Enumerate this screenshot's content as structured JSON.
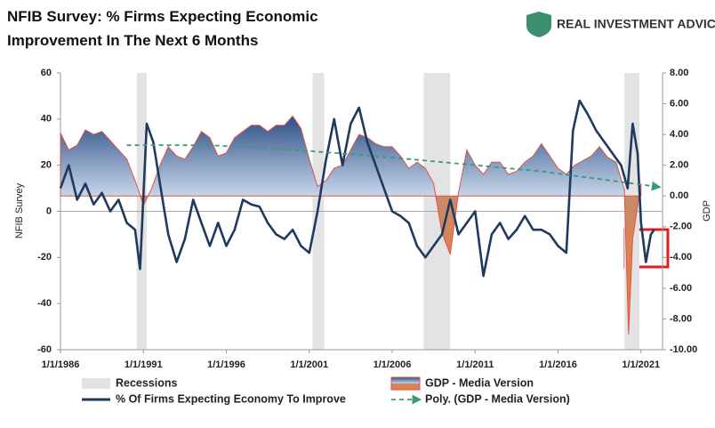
{
  "chart_data": {
    "type": "line",
    "title": [
      "NFIB Survey:  % Firms Expecting Economic",
      "Improvement In The  Next 6 Months"
    ],
    "brand": "REAL INVESTMENT ADVICE",
    "ylabel": "NFIB Survey",
    "y2label": "GDP",
    "xlim": [
      1986,
      2022.3
    ],
    "xticks": [
      {
        "value": 1986,
        "label": "1/1/1986"
      },
      {
        "value": 1991,
        "label": "1/1/1991"
      },
      {
        "value": 1996,
        "label": "1/1/1996"
      },
      {
        "value": 2001,
        "label": "1/1/2001"
      },
      {
        "value": 2006,
        "label": "1/1/2006"
      },
      {
        "value": 2011,
        "label": "1/1/2011"
      },
      {
        "value": 2016,
        "label": "1/1/2016"
      },
      {
        "value": 2021,
        "label": "1/1/2021"
      }
    ],
    "ylim": [
      -60,
      60
    ],
    "yticks": [
      -60,
      -40,
      -20,
      0,
      20,
      40,
      60
    ],
    "y2lim": [
      -10,
      8
    ],
    "y2ticks": [
      {
        "value": -10,
        "label": "-10.00"
      },
      {
        "value": -8,
        "label": "-8.00"
      },
      {
        "value": -6,
        "label": "-6.00"
      },
      {
        "value": -4,
        "label": "-4.00"
      },
      {
        "value": -2,
        "label": "-2.00"
      },
      {
        "value": 0,
        "label": "0.00"
      },
      {
        "value": 2,
        "label": "2.00"
      },
      {
        "value": 4,
        "label": "4.00"
      },
      {
        "value": 6,
        "label": "6.00"
      },
      {
        "value": 8,
        "label": "8.00"
      }
    ],
    "recessions": {
      "name": "Recessions",
      "color": "#e3e3e3",
      "spans": [
        [
          1990.6,
          1991.2
        ],
        [
          2001.2,
          2001.9
        ],
        [
          2007.9,
          2009.5
        ],
        [
          2020.0,
          2020.9
        ]
      ]
    },
    "series": [
      {
        "name": "GDP - Media Version",
        "style": "area",
        "axis": "y2",
        "color": "#2c4f86",
        "negative_color": "#f07b2f",
        "outline": "#e0534a",
        "x": [
          1986.0,
          1986.5,
          1987.0,
          1987.5,
          1988.0,
          1988.5,
          1989.0,
          1989.5,
          1990.0,
          1990.5,
          1991.0,
          1991.5,
          1992.0,
          1992.5,
          1993.0,
          1993.5,
          1994.0,
          1994.5,
          1995.0,
          1995.5,
          1996.0,
          1996.5,
          1997.0,
          1997.5,
          1998.0,
          1998.5,
          1999.0,
          1999.5,
          2000.0,
          2000.5,
          2001.0,
          2001.5,
          2002.0,
          2002.5,
          2003.0,
          2003.5,
          2004.0,
          2004.5,
          2005.0,
          2005.5,
          2006.0,
          2006.5,
          2007.0,
          2007.5,
          2008.0,
          2008.5,
          2009.0,
          2009.5,
          2010.0,
          2010.5,
          2011.0,
          2011.5,
          2012.0,
          2012.5,
          2013.0,
          2013.5,
          2014.0,
          2014.5,
          2015.0,
          2015.5,
          2016.0,
          2016.5,
          2017.0,
          2017.5,
          2018.0,
          2018.5,
          2019.0,
          2019.5,
          2020.0,
          2020.25,
          2020.5,
          2021.0
        ],
        "values": [
          4.1,
          3.0,
          3.3,
          4.3,
          4.0,
          4.2,
          3.6,
          3.0,
          2.4,
          1.0,
          -0.6,
          0.5,
          2.0,
          3.2,
          2.6,
          2.4,
          3.2,
          4.2,
          3.8,
          2.6,
          2.8,
          3.8,
          4.2,
          4.6,
          4.6,
          4.2,
          4.6,
          4.6,
          5.2,
          4.4,
          2.4,
          0.6,
          1.0,
          1.8,
          2.0,
          3.0,
          4.0,
          3.8,
          3.4,
          3.2,
          3.2,
          2.6,
          1.8,
          2.2,
          1.8,
          0.8,
          -2.4,
          -3.8,
          0.2,
          3.0,
          2.0,
          1.4,
          2.2,
          2.2,
          1.4,
          1.6,
          2.2,
          2.6,
          3.4,
          2.6,
          1.8,
          1.4,
          2.0,
          2.3,
          2.6,
          3.2,
          2.5,
          2.2,
          0.4,
          -9.0,
          -2.8,
          0.8
        ]
      },
      {
        "name": "% Of Firms Expecting Economy To Improve",
        "style": "line",
        "axis": "y",
        "color": "#1f3a5f",
        "x": [
          1986.0,
          1986.5,
          1987.0,
          1987.5,
          1988.0,
          1988.5,
          1989.0,
          1989.5,
          1990.0,
          1990.5,
          1990.8,
          1991.2,
          1991.6,
          1992.0,
          1992.5,
          1993.0,
          1993.5,
          1994.0,
          1994.5,
          1995.0,
          1995.5,
          1996.0,
          1996.5,
          1997.0,
          1997.5,
          1998.0,
          1998.5,
          1999.0,
          1999.5,
          2000.0,
          2000.5,
          2001.0,
          2001.5,
          2002.0,
          2002.5,
          2003.0,
          2003.5,
          2004.0,
          2004.5,
          2005.0,
          2005.5,
          2006.0,
          2006.5,
          2007.0,
          2007.5,
          2008.0,
          2008.5,
          2009.0,
          2009.5,
          2010.0,
          2010.5,
          2011.0,
          2011.5,
          2012.0,
          2012.5,
          2013.0,
          2013.5,
          2014.0,
          2014.5,
          2015.0,
          2015.5,
          2016.0,
          2016.5,
          2016.9,
          2017.3,
          2017.8,
          2018.3,
          2018.8,
          2019.3,
          2019.8,
          2020.2,
          2020.5,
          2020.8,
          2021.0,
          2021.3,
          2021.6,
          2021.8
        ],
        "values": [
          10,
          20,
          5,
          12,
          3,
          8,
          0,
          5,
          -5,
          -8,
          -25,
          38,
          30,
          12,
          -10,
          -22,
          -12,
          5,
          -5,
          -15,
          -5,
          -15,
          -8,
          5,
          3,
          2,
          -5,
          -10,
          -12,
          -8,
          -15,
          -18,
          0,
          22,
          40,
          20,
          38,
          45,
          30,
          20,
          10,
          0,
          -2,
          -5,
          -15,
          -20,
          -15,
          -10,
          5,
          -10,
          -5,
          0,
          -28,
          -10,
          -5,
          -12,
          -8,
          -2,
          -8,
          -8,
          -10,
          -15,
          -18,
          35,
          48,
          42,
          35,
          30,
          25,
          20,
          10,
          38,
          25,
          -5,
          -22,
          -10,
          -8
        ]
      },
      {
        "name": "Poly. (GDP - Media Version)",
        "style": "dashed",
        "axis": "y2",
        "color": "#3a9a7a",
        "x": [
          1990,
          1995,
          2000,
          2005,
          2010,
          2015,
          2022
        ],
        "values": [
          3.3,
          3.3,
          3.0,
          2.6,
          2.1,
          1.6,
          0.6
        ]
      }
    ]
  }
}
